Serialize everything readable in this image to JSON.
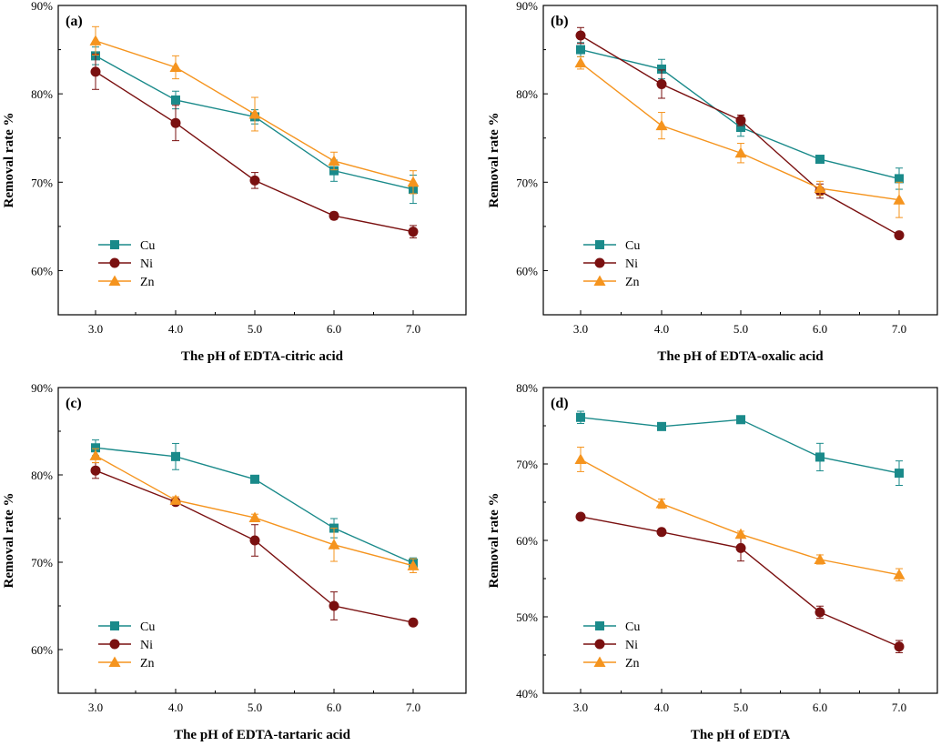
{
  "chart_data": [
    {
      "type": "line",
      "panel": "(a)",
      "xlabel": "The pH of EDTA-citric acid",
      "ylabel": "Removal rate %",
      "categories": [
        "3.0",
        "4.0",
        "5.0",
        "6.0",
        "7.0"
      ],
      "x": [
        3,
        4,
        5,
        6,
        7
      ],
      "ylim": [
        55,
        90
      ],
      "yticks": [
        60,
        70,
        80,
        90
      ],
      "ytick_labels": [
        "60%",
        "70%",
        "80%",
        "90%"
      ],
      "legend_position": "lower-left",
      "series": [
        {
          "name": "Cu",
          "marker": "square",
          "color": "#1a8a8a",
          "values": [
            84.3,
            79.3,
            77.4,
            71.3,
            69.2
          ],
          "errors": [
            1.0,
            1.0,
            0.8,
            1.2,
            1.6
          ]
        },
        {
          "name": "Ni",
          "marker": "circle",
          "color": "#7a1010",
          "values": [
            82.5,
            76.7,
            70.2,
            66.2,
            64.4
          ],
          "errors": [
            2.0,
            2.0,
            0.9,
            0.4,
            0.7
          ]
        },
        {
          "name": "Zn",
          "marker": "triangle",
          "color": "#f5941e",
          "values": [
            86.0,
            83.0,
            77.7,
            72.4,
            70.0
          ],
          "errors": [
            1.6,
            1.3,
            1.9,
            1.0,
            1.3
          ]
        }
      ]
    },
    {
      "type": "line",
      "panel": "(b)",
      "xlabel": "The pH of EDTA-oxalic acid",
      "ylabel": "Removal rate %",
      "categories": [
        "3.0",
        "4.0",
        "5.0",
        "6.0",
        "7.0"
      ],
      "x": [
        3,
        4,
        5,
        6,
        7
      ],
      "ylim": [
        55,
        90
      ],
      "yticks": [
        60,
        70,
        80,
        90
      ],
      "ytick_labels": [
        "60%",
        "70%",
        "80%",
        "90%"
      ],
      "legend_position": "lower-left",
      "series": [
        {
          "name": "Cu",
          "marker": "square",
          "color": "#1a8a8a",
          "values": [
            85.0,
            82.8,
            76.2,
            72.6,
            70.4
          ],
          "errors": [
            0.8,
            1.1,
            1.0,
            0.4,
            1.2
          ]
        },
        {
          "name": "Ni",
          "marker": "circle",
          "color": "#7a1010",
          "values": [
            86.6,
            81.1,
            77.0,
            69.0,
            64.0
          ],
          "errors": [
            0.9,
            1.6,
            0.6,
            0.8,
            0.3
          ]
        },
        {
          "name": "Zn",
          "marker": "triangle",
          "color": "#f5941e",
          "values": [
            83.5,
            76.4,
            73.3,
            69.3,
            68.0
          ],
          "errors": [
            0.7,
            1.5,
            1.1,
            0.8,
            2.0
          ]
        }
      ]
    },
    {
      "type": "line",
      "panel": "(c)",
      "xlabel": "The pH of EDTA-tartaric acid",
      "ylabel": "Removal rate %",
      "categories": [
        "3.0",
        "4.0",
        "5.0",
        "6.0",
        "7.0"
      ],
      "x": [
        3,
        4,
        5,
        6,
        7
      ],
      "ylim": [
        55,
        90
      ],
      "yticks": [
        60,
        70,
        80,
        90
      ],
      "ytick_labels": [
        "60%",
        "70%",
        "80%",
        "90%"
      ],
      "legend_position": "lower-left",
      "series": [
        {
          "name": "Cu",
          "marker": "square",
          "color": "#1a8a8a",
          "values": [
            83.1,
            82.1,
            79.5,
            73.9,
            69.9
          ],
          "errors": [
            0.9,
            1.5,
            0.3,
            1.1,
            0.6
          ]
        },
        {
          "name": "Ni",
          "marker": "circle",
          "color": "#7a1010",
          "values": [
            80.5,
            76.9,
            72.5,
            65.0,
            63.1
          ],
          "errors": [
            0.9,
            0.3,
            1.8,
            1.6,
            0.3
          ]
        },
        {
          "name": "Zn",
          "marker": "triangle",
          "color": "#f5941e",
          "values": [
            82.2,
            77.1,
            75.1,
            72.0,
            69.6
          ],
          "errors": [
            0.8,
            0.4,
            0.4,
            1.9,
            0.8
          ]
        }
      ]
    },
    {
      "type": "line",
      "panel": "(d)",
      "xlabel": "The pH of EDTA",
      "ylabel": "Removal rate %",
      "categories": [
        "3.0",
        "4.0",
        "5.0",
        "6.0",
        "7.0"
      ],
      "x": [
        3,
        4,
        5,
        6,
        7
      ],
      "ylim": [
        40,
        80
      ],
      "yticks": [
        40,
        50,
        60,
        70,
        80
      ],
      "ytick_labels": [
        "40%",
        "50%",
        "60%",
        "70%",
        "80%"
      ],
      "legend_position": "lower-left",
      "series": [
        {
          "name": "Cu",
          "marker": "square",
          "color": "#1a8a8a",
          "values": [
            76.1,
            74.9,
            75.8,
            70.9,
            68.8
          ],
          "errors": [
            0.8,
            0.3,
            0.3,
            1.8,
            1.6
          ]
        },
        {
          "name": "Ni",
          "marker": "circle",
          "color": "#7a1010",
          "values": [
            63.1,
            61.1,
            59.0,
            50.6,
            46.1
          ],
          "errors": [
            0.3,
            0.4,
            1.7,
            0.8,
            0.8
          ]
        },
        {
          "name": "Zn",
          "marker": "triangle",
          "color": "#f5941e",
          "values": [
            70.6,
            64.8,
            60.8,
            57.5,
            55.5
          ],
          "errors": [
            1.6,
            0.6,
            0.4,
            0.6,
            0.8
          ]
        }
      ]
    }
  ]
}
